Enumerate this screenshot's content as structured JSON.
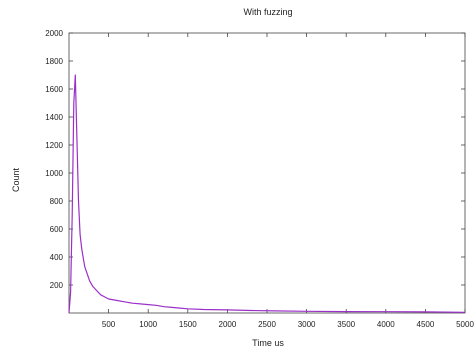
{
  "chart_data": {
    "type": "line",
    "title": "With fuzzing",
    "xlabel": "Time us",
    "ylabel": "Count",
    "xlim": [
      0,
      5000
    ],
    "ylim": [
      0,
      2000
    ],
    "xticks": [
      500,
      1000,
      1500,
      2000,
      2500,
      3000,
      3500,
      4000,
      4500,
      5000
    ],
    "yticks": [
      200,
      400,
      600,
      800,
      1000,
      1200,
      1400,
      1600,
      1800,
      2000
    ],
    "grid": false,
    "series": [
      {
        "color": "#9b30c8",
        "x": [
          0,
          20,
          40,
          60,
          80,
          100,
          120,
          140,
          160,
          180,
          200,
          230,
          260,
          300,
          350,
          400,
          450,
          500,
          600,
          700,
          800,
          900,
          1000,
          1100,
          1200,
          1300,
          1400,
          1500,
          1700,
          2000,
          2300,
          2600,
          3000,
          3500,
          4000,
          4500,
          5000
        ],
        "y": [
          0,
          150,
          700,
          1500,
          1700,
          1250,
          800,
          560,
          460,
          390,
          330,
          280,
          230,
          190,
          160,
          130,
          115,
          100,
          90,
          80,
          70,
          65,
          60,
          55,
          45,
          40,
          35,
          30,
          25,
          22,
          18,
          15,
          12,
          10,
          9,
          8,
          5
        ]
      }
    ]
  }
}
